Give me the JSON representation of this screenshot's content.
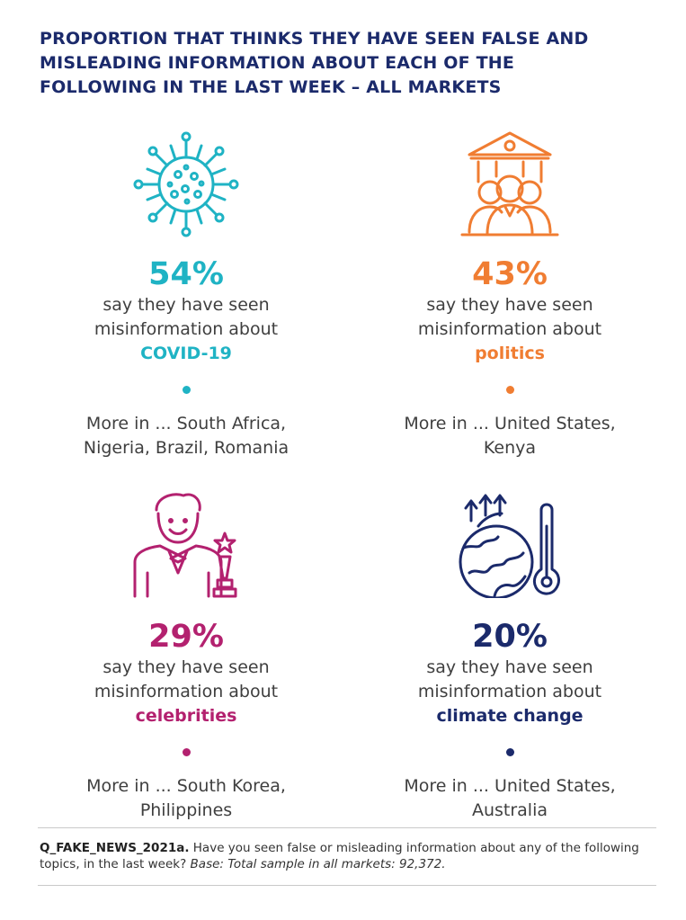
{
  "title": "PROPORTION THAT THINKS THEY HAVE SEEN FALSE AND MISLEADING INFORMATION ABOUT EACH OF THE FOLLOWING IN THE LAST WEEK – ALL MARKETS",
  "panels": [
    {
      "value_label": "54%",
      "line1": "say they have seen",
      "line2": "misinformation about",
      "topic": "COVID-19",
      "more_line1": "More in ... South Africa,",
      "more_line2": "Nigeria, Brazil, Romania",
      "color": "#1fb3c4",
      "icon": "virus-icon"
    },
    {
      "value_label": "43%",
      "line1": "say they have seen",
      "line2": "misinformation about",
      "topic": "politics",
      "more_line1": "More in ... United States,",
      "more_line2": "Kenya",
      "color": "#f07d32",
      "icon": "government-crowd-icon"
    },
    {
      "value_label": "29%",
      "line1": "say they have seen",
      "line2": "misinformation about",
      "topic": "celebrities",
      "more_line1": "More in ... South Korea,",
      "more_line2": "Philippines",
      "color": "#b3216f",
      "icon": "celebrity-award-icon"
    },
    {
      "value_label": "20%",
      "line1": "say they have seen",
      "line2": "misinformation about",
      "topic": "climate change",
      "more_line1": "More in ... United States,",
      "more_line2": "Australia",
      "color": "#1b2a6b",
      "icon": "globe-thermometer-icon"
    }
  ],
  "chart_data": {
    "type": "table",
    "title": "PROPORTION THAT THINKS THEY HAVE SEEN FALSE AND MISLEADING INFORMATION ABOUT EACH OF THE FOLLOWING IN THE LAST WEEK – ALL MARKETS",
    "categories": [
      "COVID-19",
      "politics",
      "celebrities",
      "climate change"
    ],
    "values": [
      54,
      43,
      29,
      20
    ],
    "unit": "%",
    "more_in": [
      [
        "South Africa",
        "Nigeria",
        "Brazil",
        "Romania"
      ],
      [
        "United States",
        "Kenya"
      ],
      [
        "South Korea",
        "Philippines"
      ],
      [
        "United States",
        "Australia"
      ]
    ]
  },
  "footnote": {
    "code": "Q_FAKE_NEWS_2021a.",
    "question": " Have you seen false or misleading information about any of the following topics, in the last week? ",
    "base_label": "Base:",
    "base_text": " Total sample in all markets: 92,372."
  }
}
